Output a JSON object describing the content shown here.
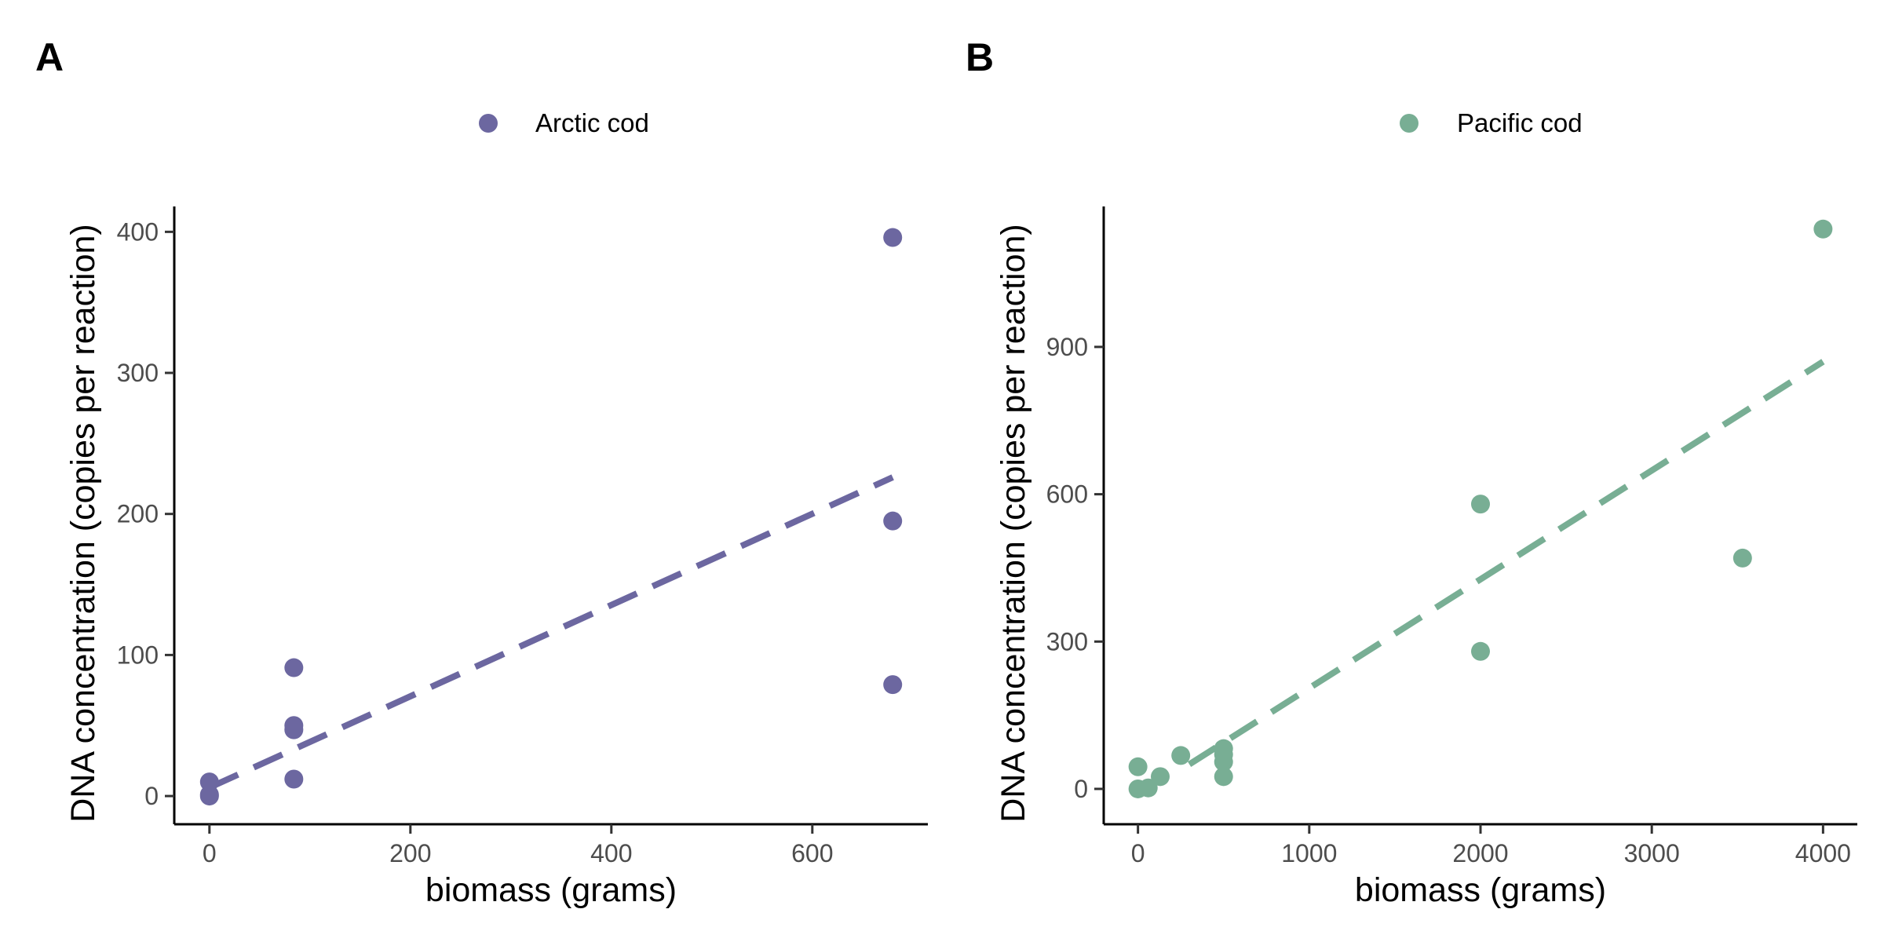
{
  "chart_data": [
    {
      "type": "scatter",
      "panel_tag": "A",
      "legend": {
        "position": "top",
        "entries": [
          "Arctic cod"
        ]
      },
      "xlabel": "biomass (grams)",
      "ylabel": "DNA concentration (copies per reaction)",
      "xlim": [
        -35,
        715
      ],
      "ylim": [
        -20,
        418
      ],
      "xticks": [
        0,
        200,
        400,
        600
      ],
      "xtick_labels": [
        "0",
        "200",
        "400",
        "600"
      ],
      "yticks": [
        0,
        100,
        200,
        300,
        400
      ],
      "ytick_labels": [
        "0",
        "100",
        "200",
        "300",
        "400"
      ],
      "grid": false,
      "series": [
        {
          "name": "Arctic cod",
          "color": "#6c67a0",
          "points": [
            {
              "x": 0,
              "y": 0
            },
            {
              "x": 0,
              "y": 1
            },
            {
              "x": 0,
              "y": 10
            },
            {
              "x": 84,
              "y": 12
            },
            {
              "x": 84,
              "y": 47
            },
            {
              "x": 84,
              "y": 50
            },
            {
              "x": 84,
              "y": 91
            },
            {
              "x": 680,
              "y": 79
            },
            {
              "x": 680,
              "y": 195
            },
            {
              "x": 680,
              "y": 396
            }
          ],
          "trendline": {
            "style": "dashed",
            "from": {
              "x": 0,
              "y": 6
            },
            "to": {
              "x": 680,
              "y": 226
            }
          }
        }
      ]
    },
    {
      "type": "scatter",
      "panel_tag": "B",
      "legend": {
        "position": "top",
        "entries": [
          "Pacific cod"
        ]
      },
      "xlabel": "biomass (grams)",
      "ylabel": "DNA concentration (copies per reaction)",
      "xlim": [
        -200,
        4200
      ],
      "ylim": [
        -72,
        1186
      ],
      "xticks": [
        0,
        1000,
        2000,
        3000,
        4000
      ],
      "xtick_labels": [
        "0",
        "1000",
        "2000",
        "3000",
        "4000"
      ],
      "yticks": [
        0,
        300,
        600,
        900
      ],
      "ytick_labels": [
        "0",
        "300",
        "600",
        "900"
      ],
      "grid": false,
      "series": [
        {
          "name": "Pacific cod",
          "color": "#78ae94",
          "points": [
            {
              "x": 0,
              "y": 0
            },
            {
              "x": 0,
              "y": 45
            },
            {
              "x": 60,
              "y": 2
            },
            {
              "x": 130,
              "y": 25
            },
            {
              "x": 250,
              "y": 68
            },
            {
              "x": 500,
              "y": 25
            },
            {
              "x": 500,
              "y": 55
            },
            {
              "x": 500,
              "y": 70
            },
            {
              "x": 500,
              "y": 82
            },
            {
              "x": 2000,
              "y": 280
            },
            {
              "x": 2000,
              "y": 580
            },
            {
              "x": 3530,
              "y": 470
            },
            {
              "x": 4000,
              "y": 1140
            }
          ],
          "trendline": {
            "style": "dashed",
            "from": {
              "x": 300,
              "y": 50
            },
            "to": {
              "x": 4000,
              "y": 870
            }
          }
        }
      ]
    }
  ]
}
